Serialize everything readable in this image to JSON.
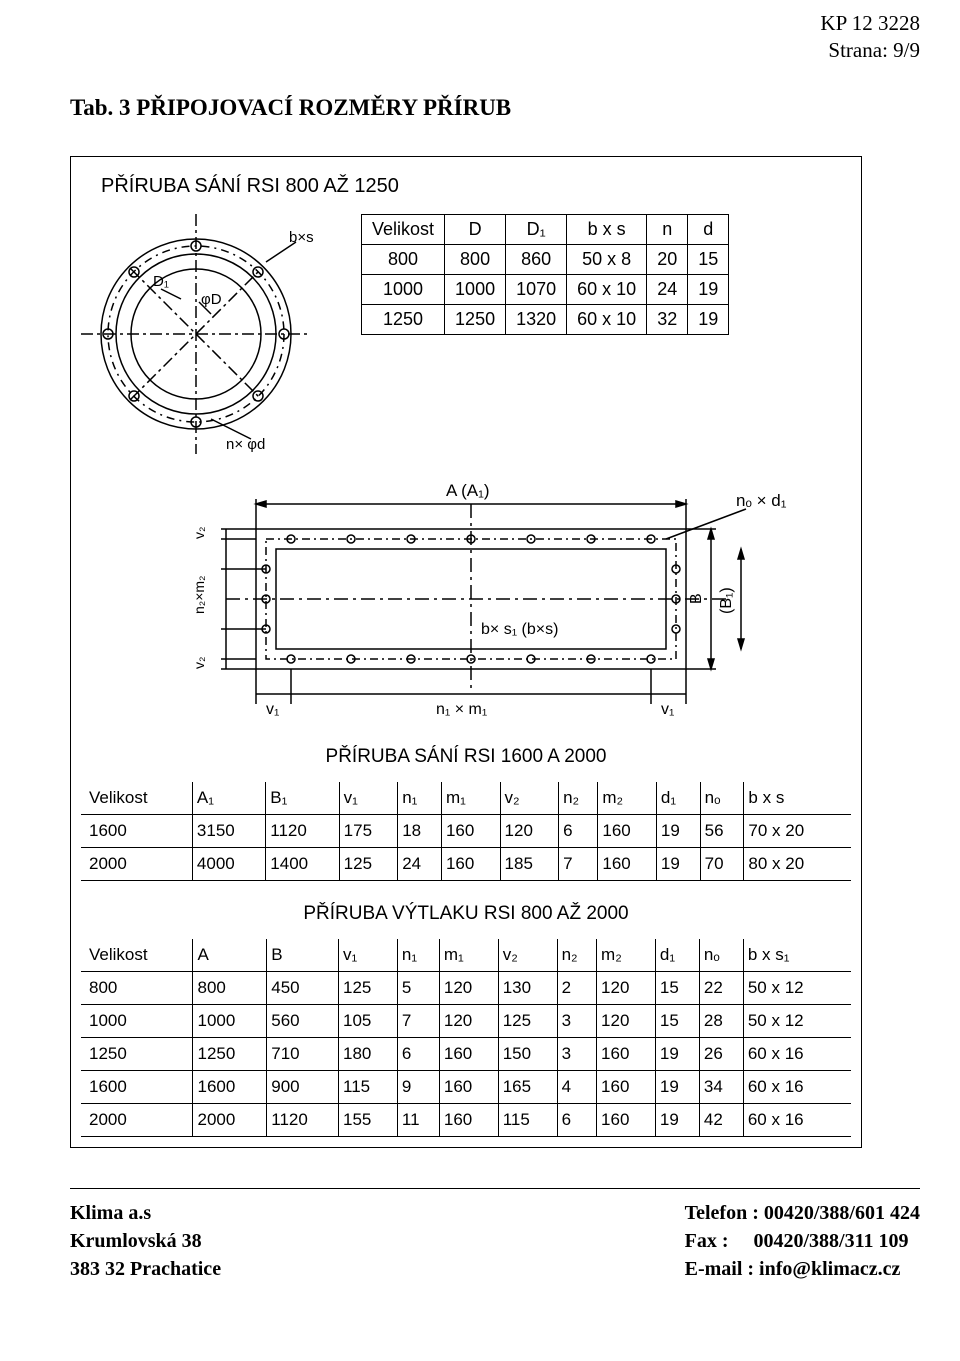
{
  "header": {
    "kp": "KP 12 3228",
    "strana": "Strana: 9/9",
    "title": "Tab. 3 PŘIPOJOVACÍ ROZMĚRY PŘÍRUB"
  },
  "section1": {
    "title": "PŘÍRUBA SÁNÍ RSI 800 AŽ 1250",
    "circle_labels": {
      "bxs": "b×s",
      "D1": "D₁",
      "phiD": "φD",
      "nxphid": "n× φd"
    },
    "table": {
      "type": "table",
      "columns": [
        "Velikost",
        "D",
        "D₁",
        "b x s",
        "n",
        "d"
      ],
      "rows": [
        [
          "800",
          "800",
          "860",
          "50 x 8",
          "20",
          "15"
        ],
        [
          "1000",
          "1000",
          "1070",
          "60 x 10",
          "24",
          "19"
        ],
        [
          "1250",
          "1250",
          "1320",
          "60 x 10",
          "32",
          "19"
        ]
      ]
    }
  },
  "rect_labels": {
    "AA1": "A (A₁)",
    "nod1": "nₒ × d₁",
    "v2": "v₂",
    "n2m2": "n₂×m₂",
    "bxs1": "b× s₁ (b×s)",
    "BB1": "B (B₁)",
    "B": "B",
    "v1": "v₁",
    "n1m1": "n₁ × m₁"
  },
  "section2": {
    "title": "PŘÍRUBA  SÁNÍ  RSI 1600 A 2000",
    "table": {
      "type": "table",
      "columns": [
        "Velikost",
        "A₁",
        "B₁",
        "v₁",
        "n₁",
        "m₁",
        "v₂",
        "n₂",
        "m₂",
        "d₁",
        "nₒ",
        "b x s"
      ],
      "rows": [
        [
          "1600",
          "3150",
          "1120",
          "175",
          "18",
          "160",
          "120",
          "6",
          "160",
          "19",
          "56",
          "70 x 20"
        ],
        [
          "2000",
          "4000",
          "1400",
          "125",
          "24",
          "160",
          "185",
          "7",
          "160",
          "19",
          "70",
          "80 x 20"
        ]
      ]
    }
  },
  "section3": {
    "title": "PŘÍRUBA  VÝTLAKU  RSI 800 AŽ 2000",
    "table": {
      "type": "table",
      "columns": [
        "Velikost",
        "A",
        "B",
        "v₁",
        "n₁",
        "m₁",
        "v₂",
        "n₂",
        "m₂",
        "d₁",
        "nₒ",
        "b x s₁"
      ],
      "rows": [
        [
          "800",
          "800",
          "450",
          "125",
          "5",
          "120",
          "130",
          "2",
          "120",
          "15",
          "22",
          "50 x 12"
        ],
        [
          "1000",
          "1000",
          "560",
          "105",
          "7",
          "120",
          "125",
          "3",
          "120",
          "15",
          "28",
          "50 x 12"
        ],
        [
          "1250",
          "1250",
          "710",
          "180",
          "6",
          "160",
          "150",
          "3",
          "160",
          "19",
          "26",
          "60 x 16"
        ],
        [
          "1600",
          "1600",
          "900",
          "115",
          "9",
          "160",
          "165",
          "4",
          "160",
          "19",
          "34",
          "60 x 16"
        ],
        [
          "2000",
          "2000",
          "1120",
          "155",
          "11",
          "160",
          "115",
          "6",
          "160",
          "19",
          "42",
          "60 x 16"
        ]
      ]
    }
  },
  "footer": {
    "company": "Klima a.s",
    "street": "Krumlovská 38",
    "city": "383 32 Prachatice",
    "tel_label": "Telefon :",
    "tel": "00420/388/601 424",
    "fax_label": "Fax   :",
    "fax": "00420/388/311 109",
    "email_label": "E-mail :",
    "email": "info@klimacz.cz"
  }
}
